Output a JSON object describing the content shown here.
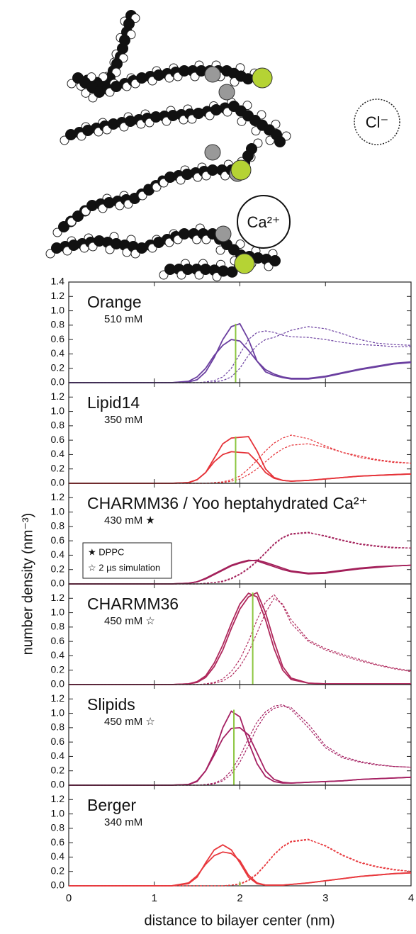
{
  "illustration": {
    "labels": [
      "Cl⁻",
      "Ca²⁺"
    ]
  },
  "chart_data": {
    "type": "line",
    "xlabel": "distance to bilayer center (nm)",
    "ylabel": "number density (nm⁻³)",
    "xlim": [
      0,
      4
    ],
    "xticks": [
      0,
      1,
      2,
      3,
      4
    ],
    "ylim": [
      0,
      1.4
    ],
    "reference_color": "#8cc63f",
    "legend": {
      "entries": [
        "★ DPPC",
        "☆ 2 µs simulation"
      ],
      "panel": 2,
      "corner": "lower left"
    },
    "x": [
      0,
      1.2,
      1.4,
      1.5,
      1.6,
      1.7,
      1.8,
      1.9,
      2.0,
      2.1,
      2.2,
      2.3,
      2.4,
      2.5,
      2.6,
      2.8,
      3.0,
      3.2,
      3.4,
      3.6,
      3.8,
      4.0
    ],
    "panels": [
      {
        "title": "Orange",
        "subtitle": "510 mM",
        "color": "#6b3fa0",
        "yticks": [
          {
            "value": 0,
            "label": "0.0"
          },
          {
            "value": 0.2,
            "label": "0.2"
          },
          {
            "value": 0.4,
            "label": "0.4"
          },
          {
            "value": 0.6,
            "label": "0.6"
          },
          {
            "value": 0.8,
            "label": "0.8"
          },
          {
            "value": 1,
            "label": "1.0"
          },
          {
            "value": 1.2,
            "label": "1.2"
          },
          {
            "value": 1.4,
            "label": "1.4"
          }
        ],
        "reference": {
          "x": 1.95,
          "y": 0.82
        },
        "series": [
          {
            "style": "solid",
            "values": [
              0,
              0,
              0.01,
              0.04,
              0.15,
              0.35,
              0.6,
              0.78,
              0.82,
              0.6,
              0.3,
              0.15,
              0.1,
              0.07,
              0.05,
              0.05,
              0.08,
              0.13,
              0.18,
              0.22,
              0.26,
              0.28
            ]
          },
          {
            "style": "solid",
            "values": [
              0,
              0,
              0.02,
              0.08,
              0.2,
              0.38,
              0.52,
              0.6,
              0.58,
              0.45,
              0.3,
              0.18,
              0.12,
              0.08,
              0.06,
              0.06,
              0.09,
              0.14,
              0.19,
              0.23,
              0.27,
              0.29
            ]
          },
          {
            "style": "dashed",
            "values": [
              0,
              0,
              0,
              0,
              0.01,
              0.03,
              0.08,
              0.2,
              0.4,
              0.6,
              0.7,
              0.72,
              0.7,
              0.66,
              0.64,
              0.63,
              0.6,
              0.56,
              0.53,
              0.52,
              0.5,
              0.5
            ]
          },
          {
            "style": "dashed",
            "values": [
              0,
              0,
              0,
              0,
              0,
              0.01,
              0.03,
              0.08,
              0.2,
              0.38,
              0.52,
              0.6,
              0.63,
              0.68,
              0.73,
              0.78,
              0.75,
              0.68,
              0.6,
              0.55,
              0.53,
              0.52
            ]
          }
        ]
      },
      {
        "title": "Lipid14",
        "subtitle": "350 mM",
        "color": "#e53238",
        "yticks": [
          {
            "value": 0,
            "label": "0.0"
          },
          {
            "value": 0.2,
            "label": "0.2"
          },
          {
            "value": 0.4,
            "label": "0.4"
          },
          {
            "value": 0.6,
            "label": "0.6"
          },
          {
            "value": 0.8,
            "label": "0.8"
          },
          {
            "value": 1,
            "label": "1.0"
          },
          {
            "value": 1.2,
            "label": "1.2"
          }
        ],
        "reference": {
          "x": 1.95,
          "y": 0.65
        },
        "series": [
          {
            "style": "solid",
            "values": [
              0,
              0,
              0.01,
              0.05,
              0.15,
              0.35,
              0.55,
              0.63,
              0.64,
              0.65,
              0.45,
              0.2,
              0.08,
              0.04,
              0.03,
              0.04,
              0.06,
              0.08,
              0.1,
              0.11,
              0.12,
              0.13
            ]
          },
          {
            "style": "solid",
            "values": [
              0,
              0,
              0.01,
              0.05,
              0.15,
              0.3,
              0.4,
              0.44,
              0.43,
              0.42,
              0.3,
              0.15,
              0.07,
              0.04,
              0.03,
              0.04,
              0.06,
              0.08,
              0.1,
              0.11,
              0.12,
              0.13
            ]
          },
          {
            "style": "dashed",
            "values": [
              0,
              0,
              0,
              0,
              0,
              0.01,
              0.02,
              0.05,
              0.1,
              0.2,
              0.32,
              0.45,
              0.56,
              0.63,
              0.67,
              0.62,
              0.52,
              0.43,
              0.36,
              0.32,
              0.29,
              0.28
            ]
          },
          {
            "style": "dashed",
            "values": [
              0,
              0,
              0,
              0,
              0,
              0,
              0.01,
              0.03,
              0.06,
              0.12,
              0.2,
              0.3,
              0.4,
              0.48,
              0.53,
              0.55,
              0.5,
              0.43,
              0.38,
              0.33,
              0.3,
              0.28
            ]
          }
        ]
      },
      {
        "title": "CHARMM36 / Yoo heptahydrated Ca²⁺",
        "subtitle": "430 mM ★",
        "color": "#a3205a",
        "yticks": [
          {
            "value": 0,
            "label": "0.0"
          },
          {
            "value": 0.2,
            "label": "0.2"
          },
          {
            "value": 0.4,
            "label": "0.4"
          },
          {
            "value": 0.6,
            "label": "0.6"
          },
          {
            "value": 0.8,
            "label": "0.8"
          },
          {
            "value": 1,
            "label": "1.0"
          },
          {
            "value": 1.2,
            "label": "1.2"
          }
        ],
        "series": [
          {
            "style": "solid",
            "values": [
              0,
              0,
              0.01,
              0.03,
              0.08,
              0.14,
              0.2,
              0.26,
              0.3,
              0.33,
              0.32,
              0.28,
              0.24,
              0.2,
              0.17,
              0.14,
              0.15,
              0.18,
              0.21,
              0.23,
              0.25,
              0.26
            ]
          },
          {
            "style": "solid",
            "values": [
              0,
              0,
              0.01,
              0.03,
              0.07,
              0.13,
              0.19,
              0.25,
              0.29,
              0.32,
              0.33,
              0.3,
              0.26,
              0.22,
              0.18,
              0.15,
              0.16,
              0.19,
              0.22,
              0.24,
              0.25,
              0.26
            ]
          },
          {
            "style": "dashed",
            "values": [
              0,
              0,
              0,
              0,
              0.01,
              0.02,
              0.04,
              0.08,
              0.14,
              0.22,
              0.32,
              0.44,
              0.56,
              0.65,
              0.7,
              0.72,
              0.66,
              0.6,
              0.55,
              0.52,
              0.5,
              0.5
            ]
          },
          {
            "style": "dashed",
            "values": [
              0,
              0,
              0,
              0,
              0.01,
              0.02,
              0.03,
              0.07,
              0.13,
              0.21,
              0.31,
              0.43,
              0.55,
              0.64,
              0.69,
              0.71,
              0.67,
              0.61,
              0.56,
              0.53,
              0.51,
              0.5
            ]
          }
        ]
      },
      {
        "title": "CHARMM36",
        "subtitle": "450 mM ☆",
        "color": "#b0285c",
        "yticks": [
          {
            "value": 0,
            "label": "0.0"
          },
          {
            "value": 0.2,
            "label": "0.2"
          },
          {
            "value": 0.4,
            "label": "0.4"
          },
          {
            "value": 0.6,
            "label": "0.6"
          },
          {
            "value": 0.8,
            "label": "0.8"
          },
          {
            "value": 1,
            "label": "1.0"
          },
          {
            "value": 1.2,
            "label": "1.2"
          }
        ],
        "reference": {
          "x": 2.15,
          "y": 1.28
        },
        "series": [
          {
            "style": "solid",
            "values": [
              0,
              0,
              0.01,
              0.04,
              0.12,
              0.3,
              0.55,
              0.85,
              1.12,
              1.27,
              1.22,
              0.9,
              0.5,
              0.2,
              0.07,
              0.02,
              0.01,
              0.01,
              0.01,
              0.01,
              0.01,
              0.01
            ]
          },
          {
            "style": "solid",
            "values": [
              0,
              0,
              0.01,
              0.03,
              0.1,
              0.25,
              0.48,
              0.78,
              1.05,
              1.22,
              1.28,
              1.0,
              0.6,
              0.25,
              0.09,
              0.02,
              0.01,
              0.01,
              0.01,
              0.01,
              0.01,
              0.01
            ]
          },
          {
            "style": "dashed",
            "values": [
              0,
              0,
              0,
              0,
              0.01,
              0.03,
              0.08,
              0.18,
              0.35,
              0.6,
              0.9,
              1.15,
              1.25,
              1.1,
              0.85,
              0.6,
              0.48,
              0.4,
              0.33,
              0.27,
              0.22,
              0.18
            ]
          },
          {
            "style": "dashed",
            "values": [
              0,
              0,
              0,
              0,
              0,
              0.02,
              0.05,
              0.12,
              0.25,
              0.45,
              0.72,
              1.0,
              1.2,
              1.12,
              0.9,
              0.62,
              0.5,
              0.42,
              0.35,
              0.28,
              0.23,
              0.19
            ]
          }
        ]
      },
      {
        "title": "Slipids",
        "subtitle": "450 mM ☆",
        "color": "#a52062",
        "yticks": [
          {
            "value": 0,
            "label": "0.0"
          },
          {
            "value": 0.2,
            "label": "0.2"
          },
          {
            "value": 0.4,
            "label": "0.4"
          },
          {
            "value": 0.6,
            "label": "0.6"
          },
          {
            "value": 0.8,
            "label": "0.8"
          },
          {
            "value": 1,
            "label": "1.0"
          },
          {
            "value": 1.2,
            "label": "1.2"
          }
        ],
        "reference": {
          "x": 1.93,
          "y": 1.05
        },
        "series": [
          {
            "style": "solid",
            "values": [
              0,
              0,
              0.01,
              0.05,
              0.2,
              0.45,
              0.8,
              1.03,
              0.95,
              0.6,
              0.3,
              0.12,
              0.05,
              0.03,
              0.03,
              0.04,
              0.05,
              0.06,
              0.08,
              0.09,
              0.1,
              0.11
            ]
          },
          {
            "style": "solid",
            "values": [
              0,
              0,
              0.01,
              0.06,
              0.2,
              0.42,
              0.65,
              0.79,
              0.8,
              0.7,
              0.45,
              0.2,
              0.08,
              0.04,
              0.03,
              0.04,
              0.05,
              0.06,
              0.08,
              0.09,
              0.1,
              0.11
            ]
          },
          {
            "style": "dashed",
            "values": [
              0,
              0,
              0,
              0,
              0.01,
              0.03,
              0.08,
              0.2,
              0.4,
              0.65,
              0.88,
              1.02,
              1.1,
              1.12,
              1.05,
              0.8,
              0.52,
              0.38,
              0.32,
              0.28,
              0.26,
              0.25
            ]
          },
          {
            "style": "dashed",
            "values": [
              0,
              0,
              0,
              0,
              0,
              0.02,
              0.06,
              0.15,
              0.32,
              0.55,
              0.8,
              0.98,
              1.07,
              1.1,
              1.08,
              0.85,
              0.55,
              0.4,
              0.33,
              0.29,
              0.26,
              0.25
            ]
          }
        ]
      },
      {
        "title": "Berger",
        "subtitle": "340 mM",
        "color": "#e8383d",
        "yticks": [
          {
            "value": 0,
            "label": "0.0"
          },
          {
            "value": 0.2,
            "label": "0.2"
          },
          {
            "value": 0.4,
            "label": "0.4"
          },
          {
            "value": 0.6,
            "label": "0.6"
          },
          {
            "value": 0.8,
            "label": "0.8"
          },
          {
            "value": 1,
            "label": "1.0"
          },
          {
            "value": 1.2,
            "label": "1.2"
          }
        ],
        "reference": {
          "x": 2.0,
          "y": 0.05
        },
        "series": [
          {
            "style": "solid",
            "values": [
              0,
              0,
              0.03,
              0.12,
              0.32,
              0.5,
              0.57,
              0.5,
              0.32,
              0.12,
              0.03,
              0.01,
              0.01,
              0.01,
              0.02,
              0.04,
              0.07,
              0.1,
              0.13,
              0.15,
              0.17,
              0.18
            ]
          },
          {
            "style": "solid",
            "values": [
              0,
              0,
              0.04,
              0.14,
              0.3,
              0.42,
              0.47,
              0.45,
              0.35,
              0.15,
              0.04,
              0.01,
              0.01,
              0.01,
              0.02,
              0.04,
              0.07,
              0.1,
              0.13,
              0.15,
              0.17,
              0.18
            ]
          },
          {
            "style": "dashed",
            "values": [
              0,
              0,
              0,
              0,
              0,
              0,
              0,
              0.01,
              0.03,
              0.08,
              0.17,
              0.3,
              0.44,
              0.55,
              0.62,
              0.65,
              0.55,
              0.42,
              0.32,
              0.26,
              0.22,
              0.2
            ]
          },
          {
            "style": "dashed",
            "values": [
              0,
              0,
              0,
              0,
              0,
              0,
              0,
              0.01,
              0.02,
              0.07,
              0.16,
              0.29,
              0.43,
              0.54,
              0.61,
              0.64,
              0.56,
              0.43,
              0.33,
              0.27,
              0.23,
              0.2
            ]
          }
        ]
      }
    ]
  }
}
